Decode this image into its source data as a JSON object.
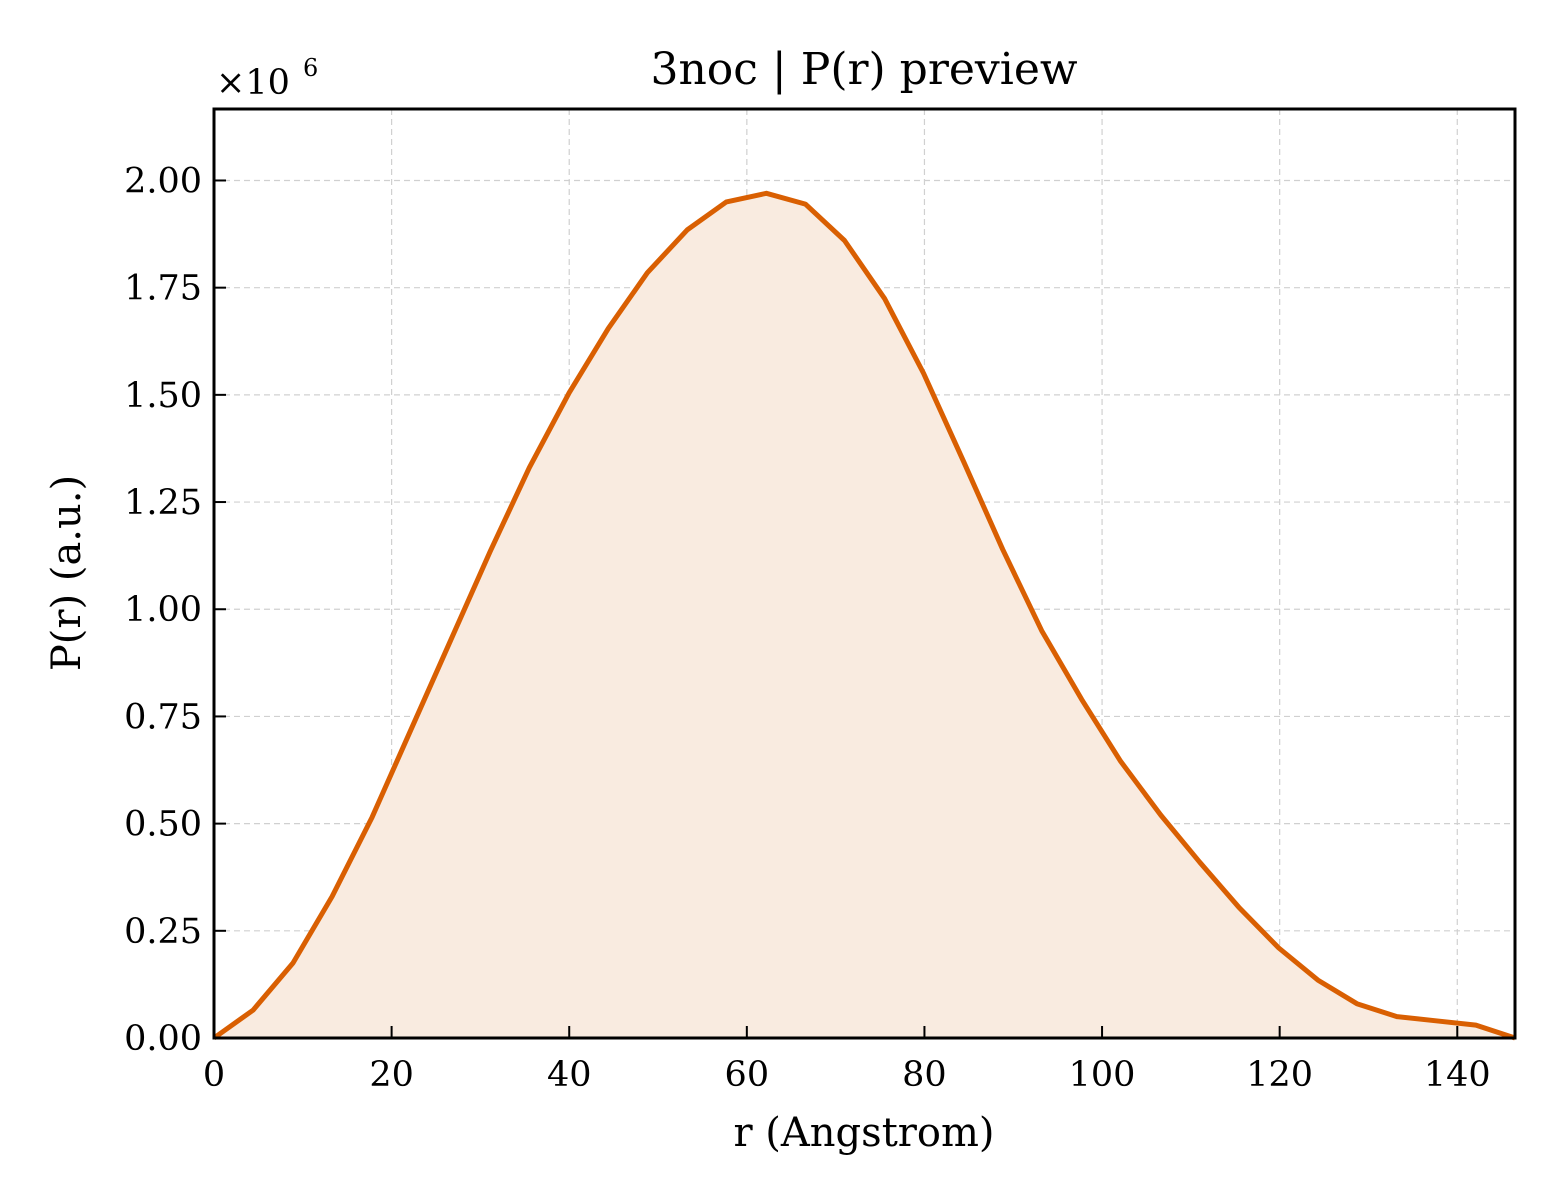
{
  "chart_data": {
    "type": "area",
    "title": "3noc | P(r) preview",
    "xlabel": "r (Angstrom)",
    "ylabel": "P(r) (a.u.)",
    "y_scale_label": "×10",
    "y_scale_exponent": "6",
    "xlim": [
      0,
      146.5
    ],
    "ylim": [
      0,
      2.1667
    ],
    "grid": true,
    "line_color": "#d95f02",
    "fill_color": "#f9ebe0",
    "x_ticks": [
      0,
      20,
      40,
      60,
      80,
      100,
      120,
      140
    ],
    "x_tick_labels": [
      "0",
      "20",
      "40",
      "60",
      "80",
      "100",
      "120",
      "140"
    ],
    "y_ticks": [
      0,
      0.25,
      0.5,
      0.75,
      1.0,
      1.25,
      1.5,
      1.75,
      2.0
    ],
    "y_tick_labels": [
      "0.00",
      "0.25",
      "0.50",
      "0.75",
      "1.00",
      "1.25",
      "1.50",
      "1.75",
      "2.00"
    ],
    "series": [
      {
        "x": [
          0,
          4.4,
          8.9,
          13.3,
          17.8,
          22.2,
          26.7,
          31.1,
          35.5,
          40.0,
          44.4,
          48.8,
          53.3,
          57.7,
          62.2,
          66.6,
          71.0,
          75.5,
          79.9,
          84.4,
          88.8,
          93.2,
          97.7,
          102.1,
          106.6,
          111.0,
          115.4,
          119.9,
          124.3,
          128.7,
          133.2,
          137.6,
          142.1,
          146.5
        ],
        "y": [
          0.0,
          0.065,
          0.175,
          0.33,
          0.515,
          0.72,
          0.93,
          1.135,
          1.33,
          1.505,
          1.655,
          1.785,
          1.885,
          1.95,
          1.97,
          1.945,
          1.86,
          1.725,
          1.55,
          1.345,
          1.14,
          0.95,
          0.79,
          0.645,
          0.52,
          0.41,
          0.305,
          0.21,
          0.135,
          0.08,
          0.05,
          0.04,
          0.03,
          0.0
        ]
      }
    ]
  }
}
